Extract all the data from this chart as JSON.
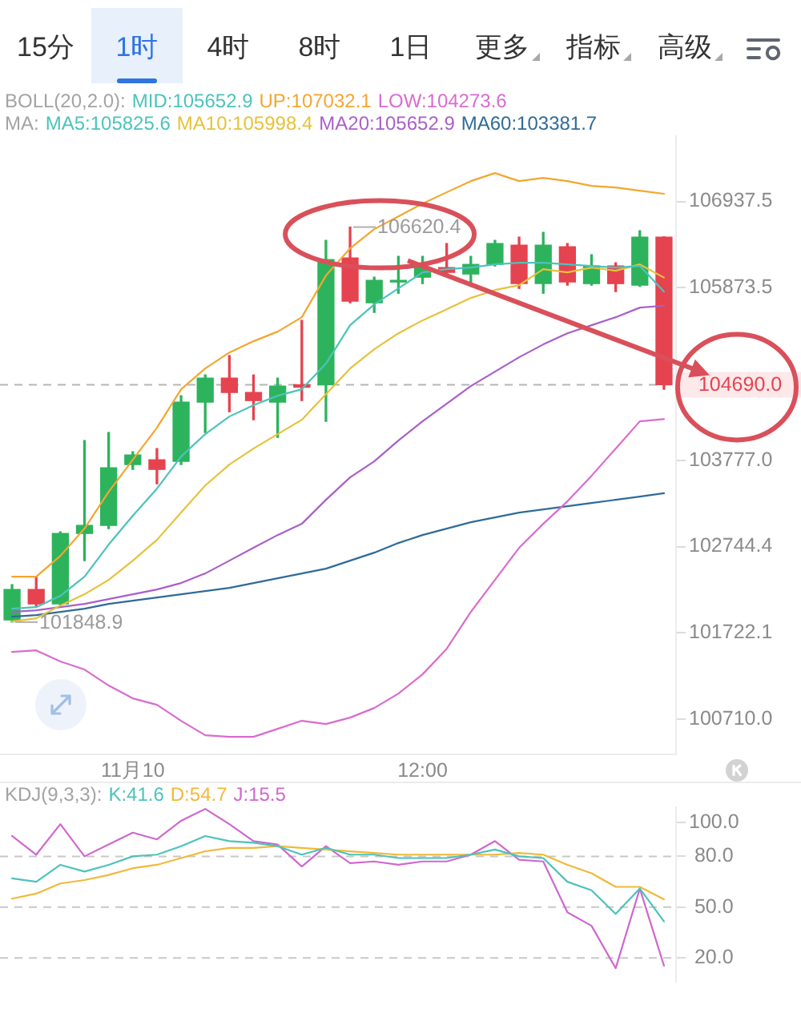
{
  "chart_data": [
    {
      "type": "other",
      "annotations": [
        "15分",
        "1时",
        "4时",
        "8时",
        "1日",
        "更多",
        "指标",
        "高级"
      ]
    },
    {
      "type": "candlestick",
      "categories": [
        null,
        null,
        null,
        null,
        null,
        "11月10",
        null,
        null,
        null,
        null,
        null,
        null,
        null,
        null,
        null,
        null,
        null,
        "12:00",
        null,
        null,
        null,
        null,
        null,
        null,
        null,
        null,
        null,
        null
      ],
      "ohlc": [
        [
          101875,
          102292,
          101848.9,
          102235
        ],
        [
          102235,
          102386,
          102040,
          102064
        ],
        [
          102064,
          102920,
          102050,
          102901
        ],
        [
          102901,
          104015,
          102578,
          102997
        ],
        [
          102997,
          104112,
          102959,
          103687
        ],
        [
          103726,
          103880,
          103668,
          103841
        ],
        [
          103783,
          103918,
          103495,
          103668
        ],
        [
          103764,
          104557,
          103726,
          104479
        ],
        [
          104479,
          104809,
          104112,
          104770
        ],
        [
          104770,
          105044,
          104363,
          104596
        ],
        [
          104596,
          104809,
          104266,
          104498
        ],
        [
          104479,
          104770,
          104054,
          104673
        ],
        [
          104690,
          105473,
          104498,
          104660
        ],
        [
          104690,
          106456,
          104247,
          106219
        ],
        [
          106239,
          106620.4,
          105689,
          105708
        ],
        [
          105689,
          106003,
          105571,
          105964
        ],
        [
          105944,
          106259,
          105806,
          105964
        ],
        [
          106003,
          106259,
          105924,
          106121
        ],
        [
          106121,
          106417,
          106023,
          106062
        ],
        [
          106042,
          106259,
          105905,
          106160
        ],
        [
          106160,
          106456,
          106141,
          106417
        ],
        [
          106397,
          106496,
          105865,
          105924
        ],
        [
          105924,
          106555,
          105806,
          106397
        ],
        [
          106377,
          106417,
          105905,
          105944
        ],
        [
          105924,
          106279,
          105905,
          106141
        ],
        [
          106141,
          106180,
          105826,
          105924
        ],
        [
          105905,
          106575,
          105890,
          106496
        ],
        [
          106496,
          106500,
          104635,
          104690.0
        ]
      ],
      "colors": [
        "#2db35c",
        "#e5434f",
        "#2db35c",
        "#2db35c",
        "#2db35c",
        "#2db35c",
        "#e5434f",
        "#2db35c",
        "#2db35c",
        "#e5434f",
        "#e5434f",
        "#2db35c",
        "#e5434f",
        "#2db35c",
        "#e5434f",
        "#2db35c",
        "#2db35c",
        "#2db35c",
        "#e5434f",
        "#2db35c",
        "#2db35c",
        "#e5434f",
        "#2db35c",
        "#e5434f",
        "#2db35c",
        "#e5434f",
        "#2db35c",
        "#e5434f"
      ],
      "series": [
        {
          "name": "MID:105652.9",
          "color": "#4cc3bb",
          "type": "line",
          "values": [
            null,
            null,
            null,
            null,
            null,
            null,
            null,
            null,
            null,
            null,
            null,
            null,
            null,
            null,
            null,
            null,
            null,
            null,
            null,
            null,
            null,
            null,
            null,
            null,
            null,
            null,
            null,
            null
          ]
        },
        {
          "name": "UP:107032.1",
          "color": "#f4a62e",
          "type": "line",
          "values": [
            102387,
            102387,
            102634,
            102959,
            103399,
            103783,
            104170,
            104635,
            104887,
            105082,
            105219,
            105336,
            105512,
            106023,
            106357,
            106595,
            106753,
            106911,
            107051,
            107190,
            107290,
            107190,
            107230,
            107190,
            107130,
            107111,
            107071,
            107032.1
          ]
        },
        {
          "name": "LOW:104273.6",
          "color": "#d96ccf",
          "type": "line",
          "values": [
            101497,
            101516,
            101385,
            101291,
            101103,
            100953,
            100878,
            100691,
            100523,
            100504,
            100504,
            100597,
            100691,
            100653,
            100728,
            100840,
            101009,
            101234,
            101535,
            101969,
            102349,
            102730,
            103016,
            103284,
            103591,
            103918,
            104247,
            104273.6
          ]
        },
        {
          "name": "MA5:105825.6",
          "color": "#4cc3bb",
          "type": "line",
          "values": [
            102007,
            102026,
            102159,
            102387,
            102768,
            103112,
            103437,
            103822,
            104092,
            104305,
            104441,
            104557,
            104635,
            104946,
            105414,
            105669,
            105865,
            106062,
            106101,
            106121,
            106160,
            106180,
            106180,
            106160,
            106141,
            106121,
            106141,
            105825.6
          ]
        },
        {
          "name": "MA10:105998.4",
          "color": "#e6c23a",
          "type": "line",
          "values": [
            101856,
            101894,
            102045,
            102178,
            102349,
            102577,
            102825,
            103150,
            103475,
            103726,
            103918,
            104092,
            104266,
            104576,
            104887,
            105121,
            105316,
            105473,
            105610,
            105748,
            105845,
            105904,
            106101,
            106062,
            106121,
            106082,
            106160,
            105998.4
          ]
        },
        {
          "name": "MA20:105652.9",
          "color": "#a95fca",
          "type": "line",
          "values": [
            101969,
            101988,
            102026,
            102064,
            102121,
            102178,
            102235,
            102311,
            102425,
            102577,
            102730,
            102882,
            103016,
            103303,
            103572,
            103764,
            104015,
            104247,
            104460,
            104673,
            104848,
            105024,
            105180,
            105316,
            105414,
            105512,
            105630,
            105652.9
          ]
        },
        {
          "name": "MA60:103381.7",
          "color": "#2f6b98",
          "type": "line",
          "values": [
            101913,
            101932,
            101969,
            102007,
            102064,
            102102,
            102140,
            102178,
            102216,
            102254,
            102311,
            102368,
            102425,
            102482,
            102577,
            102672,
            102787,
            102882,
            102959,
            103035,
            103093,
            103150,
            103188,
            103226,
            103265,
            103303,
            103341,
            103381.7
          ]
        }
      ],
      "ylim": [
        100300,
        107750
      ],
      "yticks": [
        106937.5,
        105873.5,
        {
          "value": 103777.0,
          "label": "103777.0"
        },
        102744.4,
        101722.1,
        {
          "value": 100710.0,
          "label": "100710.0"
        }
      ],
      "log": "y",
      "legend": "top",
      "ref_lines": [
        {
          "axis": "y",
          "value": 104690.0,
          "label": "104690.0",
          "color": "#b5b5b5",
          "line_style": "dashed"
        }
      ],
      "annotations": [
        "BOLL(20,2.0):",
        "MA:",
        "106620.4",
        "101848.9"
      ]
    },
    {
      "type": "line",
      "categories": [
        null,
        null,
        null,
        null,
        null,
        null,
        null,
        null,
        null,
        null,
        null,
        null,
        null,
        null,
        null,
        null,
        null,
        null,
        null,
        null,
        null,
        null,
        null,
        null,
        null,
        null,
        null,
        null
      ],
      "series": [
        {
          "name": "K:41.6",
          "color": "#4cc3bb",
          "values": [
            67,
            65,
            75,
            71,
            75,
            80,
            81,
            86,
            92,
            89,
            88,
            86,
            81,
            85,
            81,
            81,
            79,
            79,
            79,
            81,
            84,
            80,
            79,
            65,
            60,
            46,
            61,
            41.6
          ]
        },
        {
          "name": "D:54.7",
          "color": "#f1b93a",
          "values": [
            55,
            58,
            64,
            66,
            69,
            73,
            75,
            79,
            83,
            85,
            85,
            86,
            85,
            84,
            83,
            82,
            81,
            81,
            81,
            81,
            81,
            82,
            81,
            75,
            70,
            62,
            62,
            54.7
          ]
        },
        {
          "name": "J:15.5",
          "color": "#cf68cf",
          "values": [
            92,
            81,
            99,
            80,
            87,
            94,
            90,
            101,
            108,
            99,
            89,
            87,
            74,
            86,
            76,
            77,
            75,
            77,
            77,
            81,
            89,
            78,
            77,
            47,
            39,
            14,
            61,
            15.5
          ]
        }
      ],
      "ylim": [
        6,
        109
      ],
      "yticks": [
        {
          "value": 100,
          "label": "100.0"
        },
        {
          "value": 80,
          "label": "80.0"
        },
        {
          "value": 50,
          "label": "50.0"
        },
        {
          "value": 20,
          "label": "20.0"
        }
      ],
      "legend": "top left",
      "legend_title": "KDJ(9,3,3):",
      "ref_lines": [
        {
          "axis": "y",
          "value": 80,
          "color": "#c8c8c8",
          "line_style": "dashed"
        },
        {
          "axis": "y",
          "value": 50,
          "color": "#c8c8c8",
          "line_style": "dashed"
        },
        {
          "axis": "y",
          "value": 20,
          "color": "#c8c8c8",
          "line_style": "dashed"
        }
      ],
      "tick_labels": "y"
    }
  ]
}
